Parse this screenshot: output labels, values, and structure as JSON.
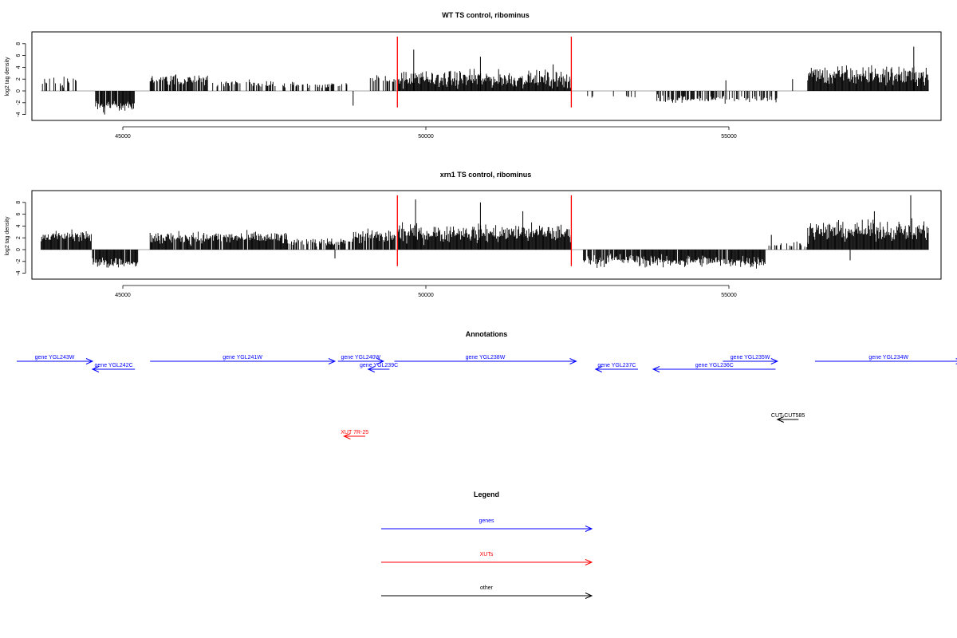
{
  "chart_data": [
    {
      "type": "bar",
      "title": "WT TS control, ribominus",
      "ylabel": "log2 tag density",
      "xlim": [
        43500,
        58500
      ],
      "ylim": [
        -5,
        10
      ],
      "xticks": [
        "45000",
        "50000",
        "55000"
      ],
      "yticks": [
        "-4",
        "-2",
        "0",
        "2",
        "4",
        "6",
        "8"
      ],
      "marker_lines": [
        49530,
        52400
      ],
      "marker_color": "#ff0000",
      "regions": [
        {
          "start": 43650,
          "end": 44250,
          "mean": 1.4,
          "spread": 1.0,
          "density": 0.35
        },
        {
          "start": 44550,
          "end": 45200,
          "mean": -2.5,
          "spread": 1.0,
          "density": 0.9
        },
        {
          "start": 45450,
          "end": 46400,
          "mean": 1.9,
          "spread": 0.9,
          "density": 0.8
        },
        {
          "start": 46400,
          "end": 47500,
          "mean": 1.2,
          "spread": 0.6,
          "density": 0.45
        },
        {
          "start": 47500,
          "end": 48800,
          "mean": 1.0,
          "spread": 0.5,
          "density": 0.35
        },
        {
          "start": 49000,
          "end": 49500,
          "mean": 2.0,
          "spread": 0.8,
          "density": 0.55
        },
        {
          "start": 49530,
          "end": 52400,
          "mean": 2.0,
          "spread": 1.4,
          "density": 1.0
        },
        {
          "start": 52550,
          "end": 53500,
          "mean": -1.0,
          "spread": 0.4,
          "density": 0.12
        },
        {
          "start": 53800,
          "end": 55800,
          "mean": -1.4,
          "spread": 0.6,
          "density": 0.5
        },
        {
          "start": 56300,
          "end": 58300,
          "mean": 2.6,
          "spread": 1.6,
          "density": 1.0
        }
      ],
      "spikes": [
        [
          49800,
          7.0
        ],
        [
          50900,
          5.8
        ],
        [
          52100,
          4.5
        ],
        [
          54950,
          1.8
        ],
        [
          56050,
          2.0
        ],
        [
          58050,
          7.5
        ],
        [
          48800,
          -2.5
        ],
        [
          44700,
          -4.0
        ]
      ]
    },
    {
      "type": "bar",
      "title": "xrn1 TS control, ribominus",
      "ylabel": "log2 tag density",
      "xlim": [
        43500,
        58500
      ],
      "ylim": [
        -5,
        10
      ],
      "xticks": [
        "45000",
        "50000",
        "55000"
      ],
      "yticks": [
        "-4",
        "-2",
        "0",
        "2",
        "4",
        "6",
        "8"
      ],
      "marker_lines": [
        49530,
        52400
      ],
      "marker_color": "#ff0000",
      "regions": [
        {
          "start": 43650,
          "end": 44500,
          "mean": 2.3,
          "spread": 0.9,
          "density": 0.95
        },
        {
          "start": 44500,
          "end": 45250,
          "mean": -2.2,
          "spread": 1.0,
          "density": 0.95
        },
        {
          "start": 45450,
          "end": 47700,
          "mean": 2.0,
          "spread": 1.0,
          "density": 0.9
        },
        {
          "start": 47700,
          "end": 48700,
          "mean": 1.3,
          "spread": 0.7,
          "density": 0.6
        },
        {
          "start": 48700,
          "end": 49500,
          "mean": 2.2,
          "spread": 1.2,
          "density": 0.85
        },
        {
          "start": 49530,
          "end": 52400,
          "mean": 2.8,
          "spread": 1.5,
          "density": 1.0
        },
        {
          "start": 52600,
          "end": 53500,
          "mean": -1.8,
          "spread": 1.0,
          "density": 0.8
        },
        {
          "start": 53500,
          "end": 55600,
          "mean": -2.0,
          "spread": 1.0,
          "density": 0.95
        },
        {
          "start": 55600,
          "end": 56300,
          "mean": 0.8,
          "spread": 0.6,
          "density": 0.3
        },
        {
          "start": 56300,
          "end": 58300,
          "mean": 3.2,
          "spread": 1.6,
          "density": 1.0
        }
      ],
      "spikes": [
        [
          49830,
          8.5
        ],
        [
          50900,
          8.0
        ],
        [
          51600,
          6.5
        ],
        [
          58000,
          9.2
        ],
        [
          57400,
          6.5
        ],
        [
          55700,
          2.5
        ],
        [
          57000,
          -1.8
        ],
        [
          48500,
          -1.5
        ]
      ]
    }
  ],
  "annotations": {
    "title": "Annotations",
    "items": [
      {
        "label": "gene YGL243W",
        "color": "#0000ff",
        "dir": "right",
        "start": 43250,
        "end": 44500,
        "row": 0
      },
      {
        "label": "gene YGL242C",
        "color": "#0000ff",
        "dir": "left",
        "start": 44500,
        "end": 45200,
        "row": 1
      },
      {
        "label": "gene YGL241W",
        "color": "#0000ff",
        "dir": "right",
        "start": 45450,
        "end": 48500,
        "row": 0
      },
      {
        "label": "gene YGL240W",
        "color": "#0000ff",
        "dir": "right",
        "start": 48550,
        "end": 49300,
        "row": 0
      },
      {
        "label": "gene YGL239C",
        "color": "#0000ff",
        "dir": "left",
        "start": 49050,
        "end": 49400,
        "row": 1
      },
      {
        "label": "gene YGL238W",
        "color": "#0000ff",
        "dir": "right",
        "start": 49480,
        "end": 52480,
        "row": 0
      },
      {
        "label": "gene YGL237C",
        "color": "#0000ff",
        "dir": "left",
        "start": 52800,
        "end": 53500,
        "row": 1
      },
      {
        "label": "gene YGL236C",
        "color": "#0000ff",
        "dir": "left",
        "start": 53750,
        "end": 55770,
        "row": 1
      },
      {
        "label": "gene YGL235W",
        "color": "#0000ff",
        "dir": "right",
        "start": 54900,
        "end": 55800,
        "row": 0
      },
      {
        "label": "gene YGL234W",
        "color": "#0000ff",
        "dir": "right",
        "start": 56420,
        "end": 58850,
        "row": 0
      },
      {
        "label": "CUT-CUT585",
        "color": "#000000",
        "dir": "left",
        "start": 55800,
        "end": 56150,
        "row": 2
      },
      {
        "label": "XUT 7R-25",
        "color": "#ff0000",
        "dir": "left",
        "start": 48650,
        "end": 49000,
        "row": 3
      }
    ]
  },
  "legend": {
    "title": "Legend",
    "items": [
      {
        "label": "genes",
        "color": "#0000ff"
      },
      {
        "label": "XUTs",
        "color": "#ff0000"
      },
      {
        "label": "other",
        "color": "#000000"
      }
    ]
  }
}
